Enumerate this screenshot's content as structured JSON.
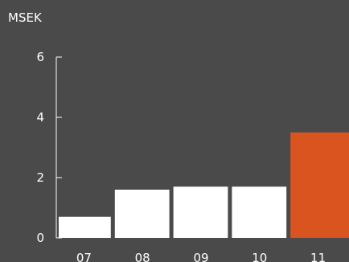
{
  "chart_data": {
    "type": "bar",
    "unit": "MSEK",
    "categories": [
      "07",
      "08",
      "09",
      "10",
      "11"
    ],
    "values": [
      0.7,
      1.6,
      1.7,
      1.7,
      3.5
    ],
    "ylim": [
      0,
      6
    ],
    "yticks": [
      0,
      2,
      4,
      6
    ],
    "grid": false,
    "colors": {
      "background": "#4a4a4b",
      "bar": "#ffffff",
      "highlight_bar": "#d9541f",
      "axis": "#ffffff"
    },
    "highlight_index": 4
  }
}
